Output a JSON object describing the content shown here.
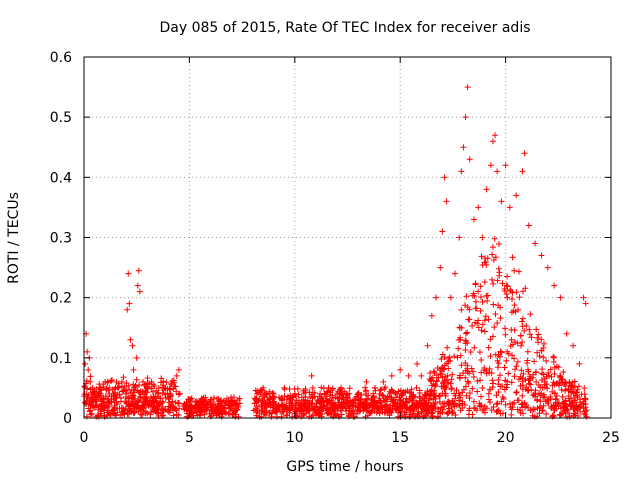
{
  "chart_data": {
    "type": "scatter",
    "title": "Day 085 of 2015, Rate Of TEC Index for receiver adis",
    "xlabel": "GPS time / hours",
    "ylabel": "ROTI / TECUs",
    "xlim": [
      0,
      25
    ],
    "ylim": [
      0,
      0.6
    ],
    "x_ticks": [
      0,
      5,
      10,
      15,
      20,
      25
    ],
    "x_tick_labels": [
      "0",
      "5",
      "10",
      "15",
      "20",
      "25"
    ],
    "y_ticks": [
      0,
      0.1,
      0.2,
      0.3,
      0.4,
      0.5,
      0.6
    ],
    "y_tick_labels": [
      "0",
      "0.1",
      "0.2",
      "0.3",
      "0.4",
      "0.5",
      "0.6"
    ],
    "grid": true,
    "marker": "+",
    "color": "#ff0000",
    "series": [
      {
        "name": "ROTI",
        "points": [
          [
            0.05,
            0.09
          ],
          [
            0.1,
            0.14
          ],
          [
            0.15,
            0.11
          ],
          [
            0.2,
            0.08
          ],
          [
            0.25,
            0.1
          ],
          [
            0.3,
            0.06
          ],
          [
            0.4,
            0.05
          ],
          [
            0.5,
            0.04
          ],
          [
            0.6,
            0.03
          ],
          [
            0.7,
            0.04
          ],
          [
            0.8,
            0.05
          ],
          [
            1.0,
            0.06
          ],
          [
            1.2,
            0.05
          ],
          [
            1.4,
            0.04
          ],
          [
            1.6,
            0.05
          ],
          [
            1.8,
            0.06
          ],
          [
            2.0,
            0.04
          ],
          [
            2.05,
            0.18
          ],
          [
            2.1,
            0.24
          ],
          [
            2.15,
            0.19
          ],
          [
            2.2,
            0.13
          ],
          [
            2.3,
            0.12
          ],
          [
            2.35,
            0.08
          ],
          [
            2.5,
            0.1
          ],
          [
            2.55,
            0.22
          ],
          [
            2.6,
            0.245
          ],
          [
            2.65,
            0.21
          ],
          [
            2.8,
            0.06
          ],
          [
            3.0,
            0.05
          ],
          [
            3.2,
            0.06
          ],
          [
            3.5,
            0.04
          ],
          [
            3.8,
            0.05
          ],
          [
            4.1,
            0.04
          ],
          [
            4.4,
            0.07
          ],
          [
            4.5,
            0.08
          ],
          [
            4.7,
            0.02
          ],
          [
            5.0,
            0.03
          ],
          [
            5.5,
            0.025
          ],
          [
            6.0,
            0.03
          ],
          [
            6.5,
            0.03
          ],
          [
            7.0,
            0.025
          ],
          [
            7.3,
            0.03
          ],
          [
            8.2,
            0.04
          ],
          [
            8.5,
            0.05
          ],
          [
            9.0,
            0.04
          ],
          [
            9.5,
            0.05
          ],
          [
            10.0,
            0.04
          ],
          [
            10.4,
            0.045
          ],
          [
            10.8,
            0.07
          ],
          [
            11.2,
            0.04
          ],
          [
            11.6,
            0.05
          ],
          [
            12.0,
            0.04
          ],
          [
            12.5,
            0.035
          ],
          [
            13.0,
            0.04
          ],
          [
            13.4,
            0.06
          ],
          [
            13.8,
            0.05
          ],
          [
            14.2,
            0.06
          ],
          [
            14.6,
            0.07
          ],
          [
            15.0,
            0.08
          ],
          [
            15.4,
            0.07
          ],
          [
            15.8,
            0.09
          ],
          [
            16.0,
            0.07
          ],
          [
            16.3,
            0.12
          ],
          [
            16.5,
            0.17
          ],
          [
            16.7,
            0.2
          ],
          [
            16.9,
            0.25
          ],
          [
            17.0,
            0.31
          ],
          [
            17.1,
            0.4
          ],
          [
            17.2,
            0.36
          ],
          [
            17.4,
            0.2
          ],
          [
            17.6,
            0.24
          ],
          [
            17.8,
            0.3
          ],
          [
            17.9,
            0.41
          ],
          [
            18.0,
            0.45
          ],
          [
            18.1,
            0.5
          ],
          [
            18.2,
            0.55
          ],
          [
            18.3,
            0.43
          ],
          [
            18.5,
            0.33
          ],
          [
            18.7,
            0.35
          ],
          [
            18.9,
            0.3
          ],
          [
            19.1,
            0.38
          ],
          [
            19.3,
            0.42
          ],
          [
            19.4,
            0.46
          ],
          [
            19.5,
            0.47
          ],
          [
            19.6,
            0.41
          ],
          [
            19.8,
            0.36
          ],
          [
            20.0,
            0.42
          ],
          [
            20.2,
            0.35
          ],
          [
            20.5,
            0.37
          ],
          [
            20.8,
            0.41
          ],
          [
            20.9,
            0.44
          ],
          [
            21.1,
            0.32
          ],
          [
            21.4,
            0.29
          ],
          [
            21.7,
            0.27
          ],
          [
            22.0,
            0.25
          ],
          [
            22.3,
            0.22
          ],
          [
            22.6,
            0.2
          ],
          [
            22.9,
            0.14
          ],
          [
            23.2,
            0.12
          ],
          [
            23.5,
            0.09
          ],
          [
            23.7,
            0.2
          ],
          [
            23.8,
            0.19
          ]
        ]
      }
    ],
    "segments": [
      {
        "x0": 0.0,
        "x1": 4.55,
        "base": 0.02,
        "spread": 0.05
      },
      {
        "x0": 4.75,
        "x1": 7.4,
        "base": 0.018,
        "spread": 0.02
      },
      {
        "x0": 8.05,
        "x1": 16.3,
        "base": 0.02,
        "spread": 0.035
      },
      {
        "x0": 16.3,
        "x1": 23.85,
        "base": 0.02,
        "spread": 0.25
      }
    ]
  }
}
